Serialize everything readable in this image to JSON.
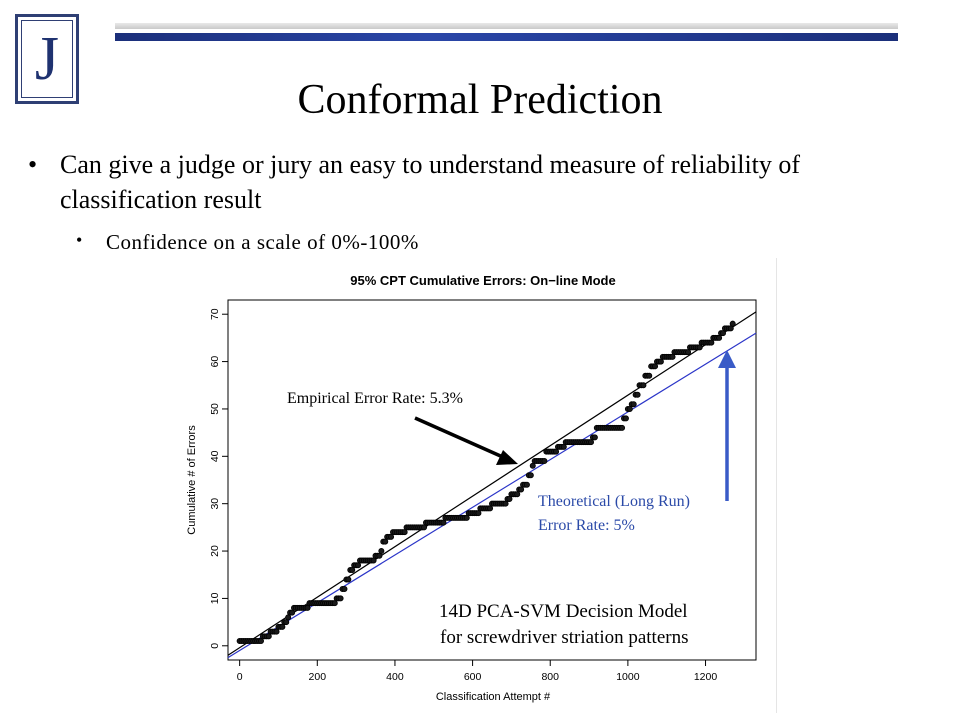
{
  "logo": {
    "letter": "J"
  },
  "title": "Conformal Prediction",
  "bullets": [
    {
      "glyph": "•",
      "text": "Can give a judge or jury an easy to understand measure of reliability of classification result"
    },
    {
      "glyph": "•",
      "text": "Confidence on a scale of 0%-100%"
    }
  ],
  "colors": {
    "accent": "#1f3270",
    "blue_line": "#2b35c8",
    "annotation_blue": "#2b4aa8",
    "arrow_blue": "#3a5bc7"
  },
  "chart_data": {
    "type": "line",
    "title": "95% CPT Cumulative Errors: On−line Mode",
    "xlabel": "Classification Attempt #",
    "ylabel": "Cumulative # of Errors",
    "xlim": [
      -30,
      1330
    ],
    "ylim": [
      -3,
      73
    ],
    "x_ticks": [
      0,
      200,
      400,
      600,
      800,
      1000,
      1200
    ],
    "y_ticks": [
      0,
      10,
      20,
      30,
      40,
      50,
      60,
      70
    ],
    "grid": false,
    "series": [
      {
        "style": "step-points",
        "color": "#000000",
        "points": [
          [
            0,
            1
          ],
          [
            50,
            1
          ],
          [
            60,
            2
          ],
          [
            80,
            3
          ],
          [
            100,
            4
          ],
          [
            115,
            5
          ],
          [
            125,
            6
          ],
          [
            130,
            7
          ],
          [
            140,
            8
          ],
          [
            170,
            8
          ],
          [
            180,
            9
          ],
          [
            240,
            9
          ],
          [
            250,
            10
          ],
          [
            265,
            12
          ],
          [
            275,
            14
          ],
          [
            285,
            16
          ],
          [
            295,
            17
          ],
          [
            310,
            18
          ],
          [
            340,
            18
          ],
          [
            350,
            19
          ],
          [
            365,
            20
          ],
          [
            370,
            22
          ],
          [
            380,
            23
          ],
          [
            395,
            24
          ],
          [
            420,
            24
          ],
          [
            430,
            25
          ],
          [
            470,
            25
          ],
          [
            480,
            26
          ],
          [
            520,
            26
          ],
          [
            530,
            27
          ],
          [
            580,
            27
          ],
          [
            590,
            28
          ],
          [
            610,
            28
          ],
          [
            620,
            29
          ],
          [
            640,
            29
          ],
          [
            650,
            30
          ],
          [
            680,
            30
          ],
          [
            690,
            31
          ],
          [
            700,
            32
          ],
          [
            710,
            32
          ],
          [
            720,
            33
          ],
          [
            730,
            34
          ],
          [
            745,
            36
          ],
          [
            755,
            38
          ],
          [
            760,
            39
          ],
          [
            780,
            39
          ],
          [
            790,
            41
          ],
          [
            820,
            42
          ],
          [
            840,
            43
          ],
          [
            900,
            43
          ],
          [
            910,
            44
          ],
          [
            920,
            46
          ],
          [
            980,
            46
          ],
          [
            990,
            48
          ],
          [
            1000,
            50
          ],
          [
            1010,
            51
          ],
          [
            1020,
            53
          ],
          [
            1030,
            55
          ],
          [
            1045,
            57
          ],
          [
            1060,
            59
          ],
          [
            1075,
            60
          ],
          [
            1090,
            61
          ],
          [
            1120,
            62
          ],
          [
            1160,
            63
          ],
          [
            1190,
            64
          ],
          [
            1220,
            65
          ],
          [
            1240,
            66
          ],
          [
            1250,
            67
          ],
          [
            1270,
            68
          ]
        ]
      },
      {
        "style": "line",
        "color": "#000000",
        "points": [
          [
            -30,
            -2
          ],
          [
            1330,
            70.5
          ]
        ]
      },
      {
        "style": "line",
        "color": "#2b35c8",
        "points": [
          [
            -30,
            -2.5
          ],
          [
            1330,
            66
          ]
        ]
      }
    ],
    "annotations": [
      {
        "text": "Empirical Error Rate: 5.3%",
        "color": "#000000"
      },
      {
        "text": "Theoretical (Long Run)",
        "color": "#2b4aa8"
      },
      {
        "text": "Error Rate: 5%",
        "color": "#2b4aa8"
      },
      {
        "text": "14D PCA-SVM Decision Model",
        "color": "#000000"
      },
      {
        "text": "for screwdriver striation patterns",
        "color": "#000000"
      }
    ]
  }
}
